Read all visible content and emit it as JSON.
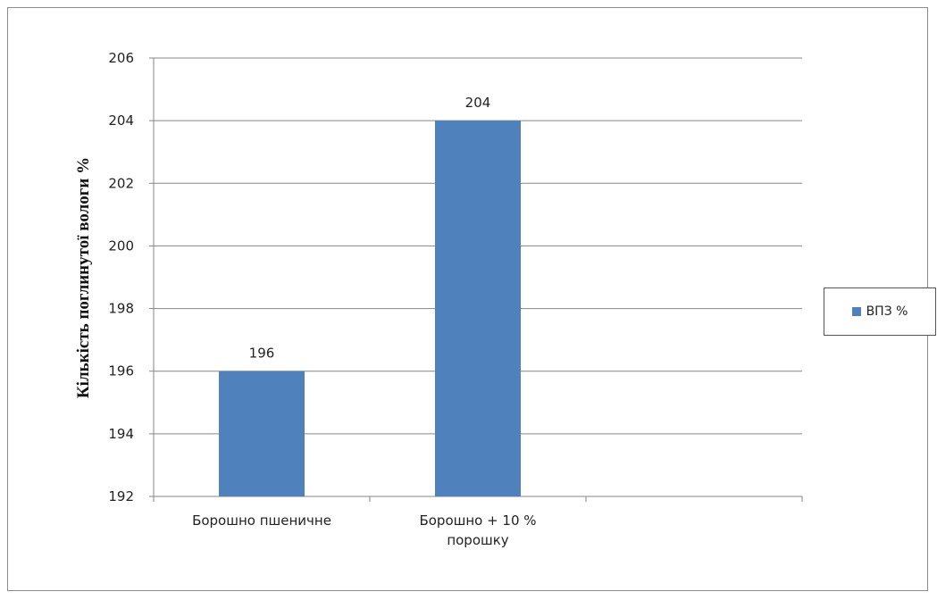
{
  "chart_data": {
    "type": "bar",
    "categories": [
      "Борошно пшеничне",
      "Борошно + 10 % порошку",
      ""
    ],
    "category_lines": [
      [
        "Борошно пшеничне"
      ],
      [
        "Борошно + 10 %",
        "порошку"
      ],
      [
        ""
      ]
    ],
    "series": [
      {
        "name": "ВПЗ %",
        "values": [
          196,
          204,
          null
        ],
        "color": "#4f81bd"
      }
    ],
    "data_labels": [
      "196",
      "204"
    ],
    "ylabel": "Кількість поглинутої вологи  %",
    "xlabel": "",
    "ylim": [
      192,
      206
    ],
    "yticks": [
      192,
      194,
      196,
      198,
      200,
      202,
      204,
      206
    ],
    "grid": true,
    "legend_position": "right"
  }
}
